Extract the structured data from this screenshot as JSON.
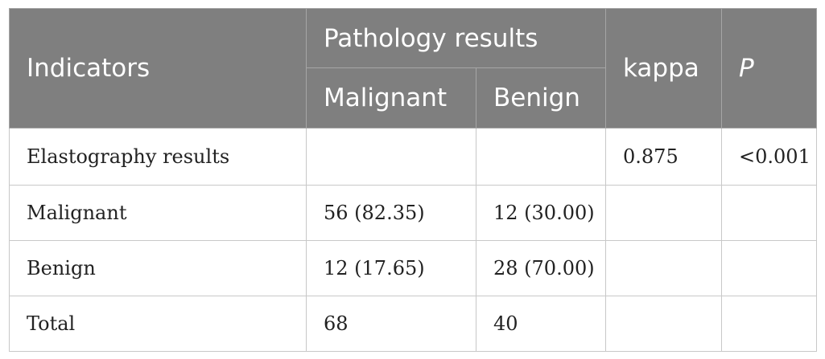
{
  "header": {
    "indicators": "Indicators",
    "pathology": "Pathology results",
    "malignant": "Malignant",
    "benign": "Benign",
    "kappa": "kappa",
    "p": "P"
  },
  "rows": [
    {
      "label": "Elastography results",
      "malignant": "",
      "benign": "",
      "kappa": "0.875",
      "p": "<0.001"
    },
    {
      "label": "Malignant",
      "malignant": "56 (82.35)",
      "benign": "12 (30.00)",
      "kappa": "",
      "p": ""
    },
    {
      "label": "Benign",
      "malignant": "12 (17.65)",
      "benign": "28 (70.00)",
      "kappa": "",
      "p": ""
    },
    {
      "label": "Total",
      "malignant": "68",
      "benign": "40",
      "kappa": "",
      "p": ""
    }
  ]
}
